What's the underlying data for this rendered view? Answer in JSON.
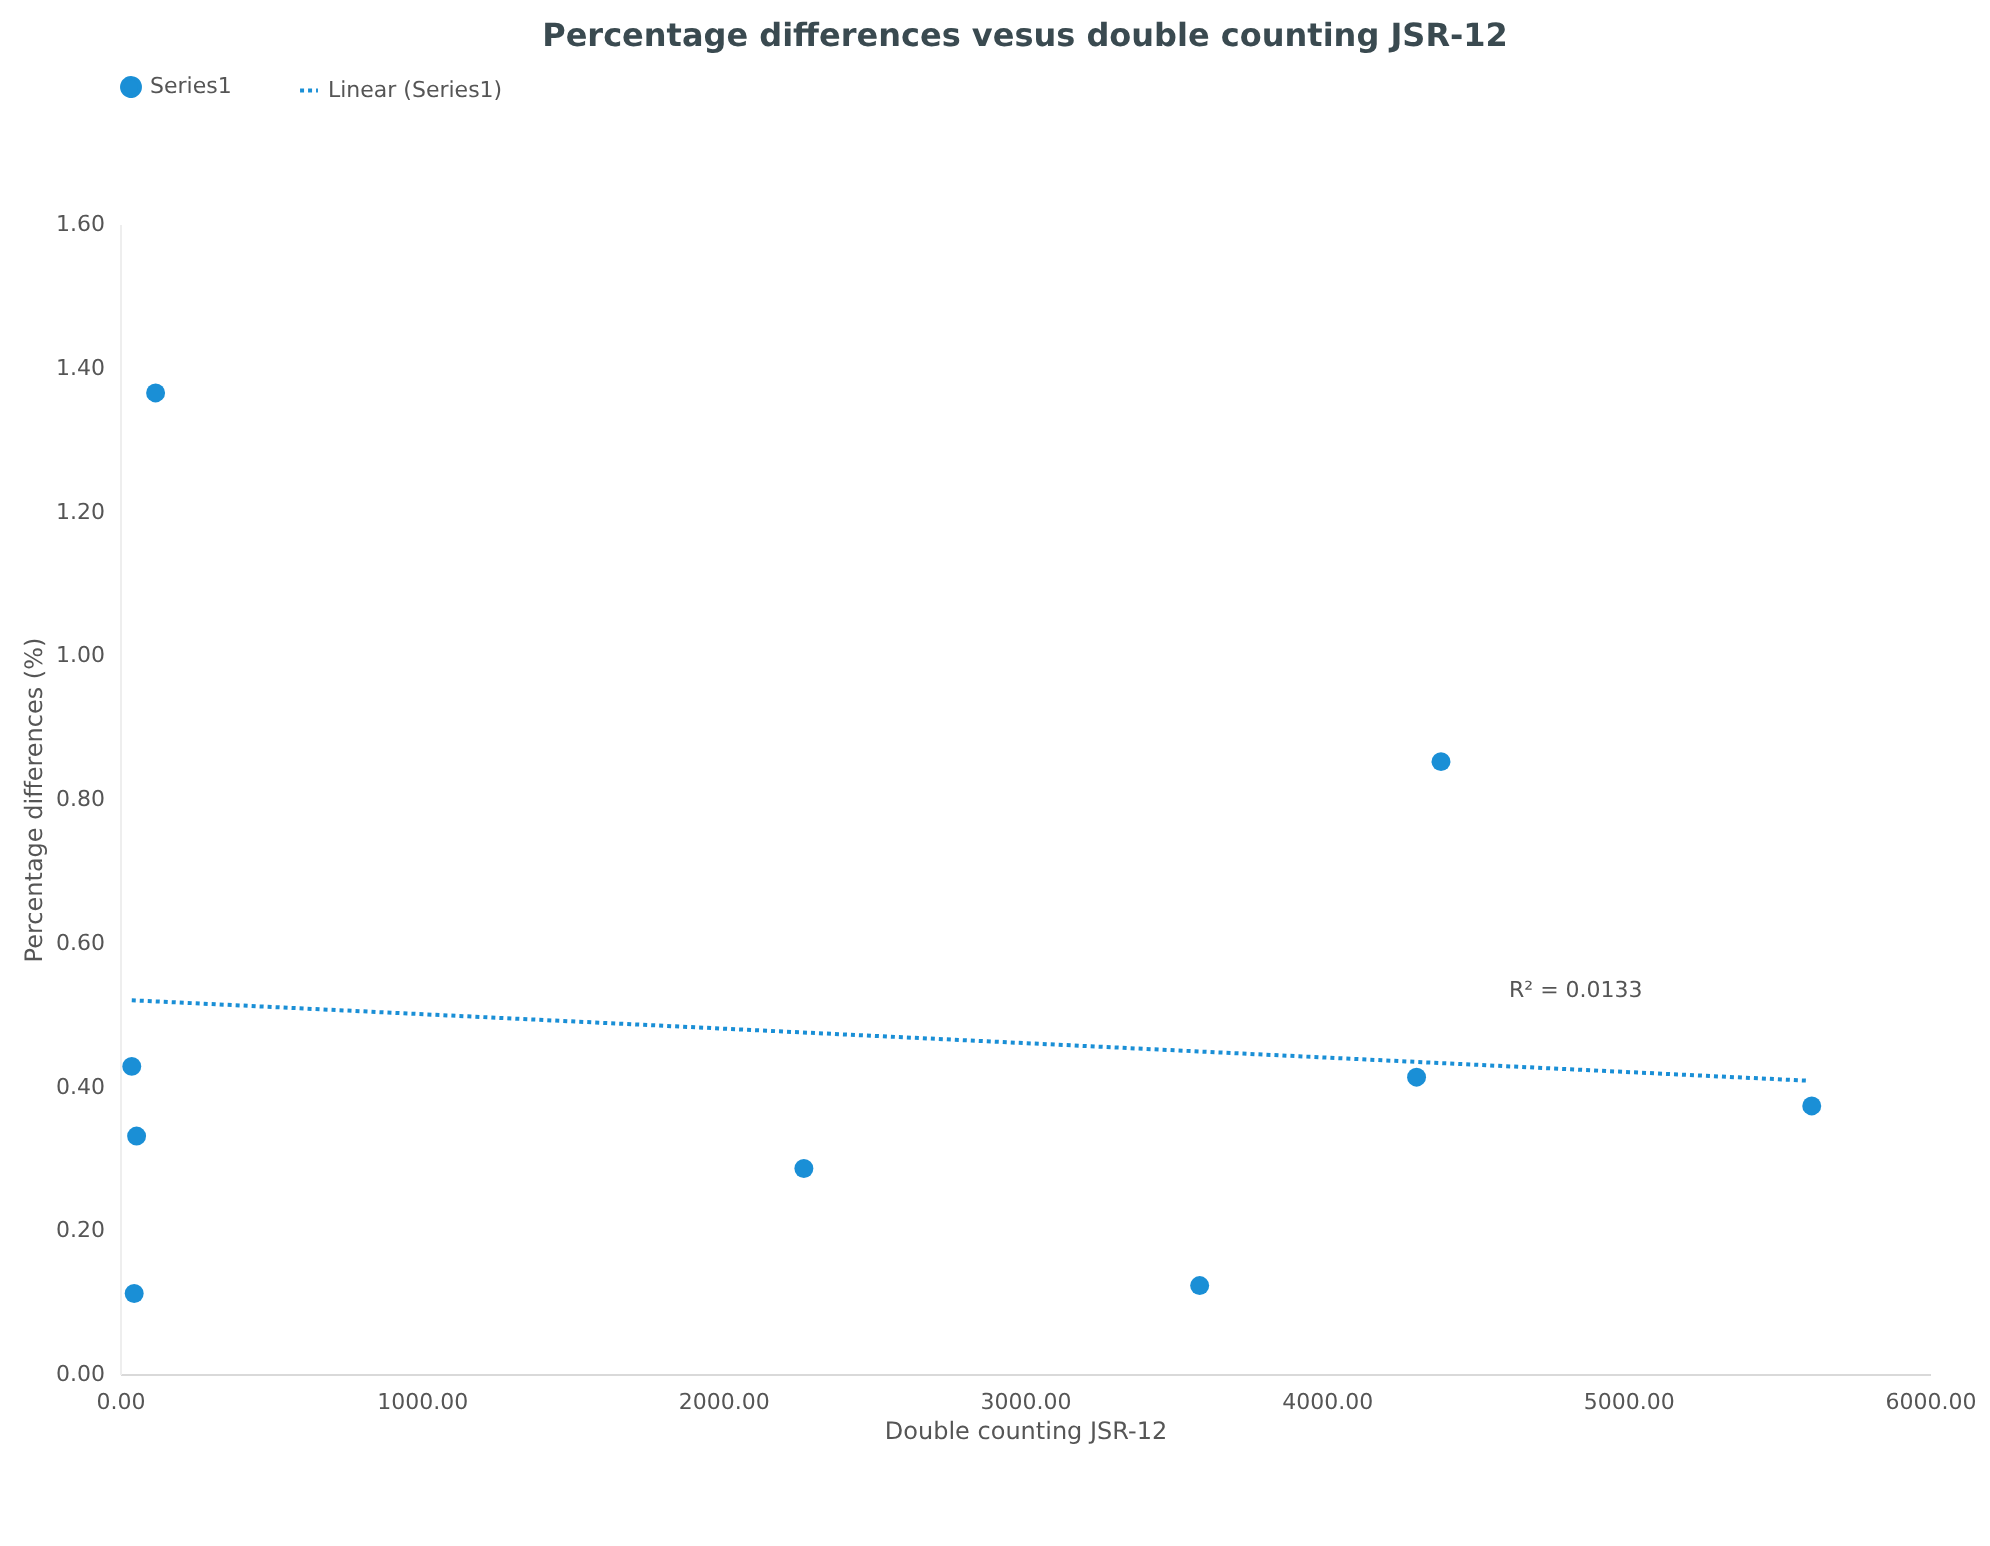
{
  "chart_data": {
    "type": "scatter",
    "title": "Percentage differences vesus double counting JSR-12",
    "xlabel": "Double counting JSR-12",
    "ylabel": "Percentage differences (%)",
    "x": [
      118,
      39,
      55,
      47,
      2267,
      3579,
      4298,
      4379,
      5608
    ],
    "series": [
      {
        "name": "Series1",
        "color": "#1a8fd6",
        "type": "scatter",
        "marker": "circle",
        "values": [
          1.365,
          0.428,
          0.331,
          0.112,
          0.286,
          0.123,
          0.413,
          0.852,
          0.373
        ]
      },
      {
        "name": "Linear (Series1)",
        "color": "#1a8fd6",
        "type": "line",
        "marker": "none",
        "line_style": "dotted",
        "x": [
          39,
          5599
        ],
        "values": [
          0.52,
          0.408
        ]
      }
    ],
    "xlim": [
      0,
      6000
    ],
    "xticks": [
      {
        "value": 0,
        "label": "0.00"
      },
      {
        "value": 1000,
        "label": "1000.00"
      },
      {
        "value": 2000,
        "label": "2000.00"
      },
      {
        "value": 3000,
        "label": "3000.00"
      },
      {
        "value": 4000,
        "label": "4000.00"
      },
      {
        "value": 5000,
        "label": "5000.00"
      },
      {
        "value": 6000,
        "label": "6000.00"
      }
    ],
    "ylim": [
      0,
      1.6
    ],
    "yticks": [
      {
        "value": 0,
        "label": "0.00"
      },
      {
        "value": 0.2,
        "label": "0.20"
      },
      {
        "value": 0.4,
        "label": "0.40"
      },
      {
        "value": 0.6,
        "label": "0.60"
      },
      {
        "value": 0.8,
        "label": "0.80"
      },
      {
        "value": 1,
        "label": "1.00"
      },
      {
        "value": 1.2,
        "label": "1.20"
      },
      {
        "value": 1.4,
        "label": "1.40"
      },
      {
        "value": 1.6,
        "label": "1.60"
      }
    ],
    "annotations": [
      "R² = 0.0133"
    ],
    "legend": "top",
    "grid": false
  }
}
